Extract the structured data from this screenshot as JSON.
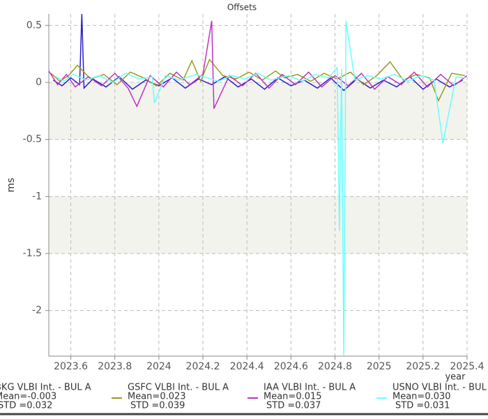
{
  "chart_data": {
    "type": "line",
    "title": "Offsets",
    "y_label": "ms",
    "x_label": "year",
    "xlim": [
      2023.5,
      2025.4
    ],
    "xticks": [
      2023.6,
      2023.8,
      2024,
      2024.2,
      2024.4,
      2024.6,
      2024.8,
      2025,
      2025.2,
      2025.4
    ],
    "ylim": [
      -2.4,
      0.6
    ],
    "yticks": [
      0.5,
      0,
      -0.5,
      -1,
      -1.5,
      -2
    ],
    "grid": true,
    "series": [
      {
        "name": "BKG VLBI Int. - BUL A",
        "color": "#2a1fc8",
        "stats": [
          "Mean=-0.003",
          "STD =0.032"
        ],
        "x": [
          2023.52,
          2023.56,
          2023.6,
          2023.64,
          2023.65,
          2023.66,
          2023.7,
          2023.76,
          2023.82,
          2023.88,
          2023.94,
          2024.0,
          2024.06,
          2024.12,
          2024.18,
          2024.24,
          2024.3,
          2024.36,
          2024.42,
          2024.48,
          2024.54,
          2024.6,
          2024.66,
          2024.72,
          2024.78,
          2024.84,
          2024.9,
          2024.96,
          2025.02,
          2025.08,
          2025.14,
          2025.2,
          2025.26,
          2025.32,
          2025.38
        ],
        "values": [
          0.02,
          -0.03,
          0.04,
          -0.02,
          0.6,
          -0.05,
          0.03,
          -0.04,
          0.05,
          -0.06,
          0.02,
          -0.03,
          0.04,
          -0.05,
          0.03,
          -0.02,
          0.05,
          -0.04,
          0.03,
          -0.06,
          0.04,
          -0.03,
          0.02,
          -0.05,
          0.04,
          -0.07,
          0.03,
          -0.05,
          0.02,
          -0.04,
          0.05,
          -0.06,
          0.03,
          -0.04,
          0.02
        ]
      },
      {
        "name": "GSFC VLBI Int. - BUL A",
        "color": "#9a9a1e",
        "stats": [
          "Mean=0.023",
          "STD =0.039"
        ],
        "x": [
          2023.51,
          2023.55,
          2023.59,
          2023.63,
          2023.69,
          2023.75,
          2023.81,
          2023.87,
          2023.93,
          2023.99,
          2024.05,
          2024.11,
          2024.15,
          2024.19,
          2024.23,
          2024.29,
          2024.35,
          2024.41,
          2024.47,
          2024.53,
          2024.57,
          2024.63,
          2024.69,
          2024.75,
          2024.81,
          2024.87,
          2024.93,
          2024.99,
          2025.05,
          2025.11,
          2025.17,
          2025.23,
          2025.27,
          2025.33,
          2025.39
        ],
        "values": [
          0.08,
          0.01,
          0.06,
          0.15,
          0.03,
          0.07,
          -0.02,
          0.09,
          0.04,
          -0.03,
          0.08,
          0.02,
          0.19,
          0.01,
          0.2,
          0.06,
          0.03,
          0.09,
          0.02,
          0.1,
          0.04,
          0.07,
          0.01,
          0.08,
          0.03,
          0.09,
          -0.02,
          0.06,
          0.18,
          0.02,
          0.07,
          0.04,
          -0.16,
          0.08,
          0.06
        ]
      },
      {
        "name": "IAA VLBI Int. - BUL A",
        "color": "#c032c0",
        "stats": [
          "Mean=0.015",
          "STD =0.037"
        ],
        "x": [
          2023.5,
          2023.54,
          2023.58,
          2023.62,
          2023.68,
          2023.74,
          2023.8,
          2023.86,
          2023.9,
          2023.96,
          2024.02,
          2024.08,
          2024.14,
          2024.2,
          2024.24,
          2024.25,
          2024.32,
          2024.38,
          2024.44,
          2024.5,
          2024.56,
          2024.62,
          2024.68,
          2024.74,
          2024.8,
          2024.86,
          2024.92,
          2024.98,
          2025.04,
          2025.1,
          2025.16,
          2025.22,
          2025.28,
          2025.34,
          2025.4
        ],
        "values": [
          0.1,
          -0.02,
          0.07,
          -0.04,
          0.05,
          -0.03,
          0.08,
          -0.05,
          -0.21,
          0.06,
          -0.04,
          0.09,
          -0.02,
          0.07,
          0.54,
          -0.23,
          0.06,
          -0.03,
          0.08,
          -0.05,
          0.07,
          -0.02,
          0.09,
          -0.04,
          0.06,
          -0.03,
          0.08,
          -0.06,
          0.05,
          -0.02,
          0.09,
          -0.04,
          0.07,
          -0.03,
          0.06
        ]
      },
      {
        "name": "USNO VLBI Int. - BUL A",
        "color": "#66ffff",
        "stats": [
          "Mean=0.030",
          "STD =0.031"
        ],
        "x": [
          2023.53,
          2023.57,
          2023.61,
          2023.67,
          2023.73,
          2023.79,
          2023.85,
          2023.91,
          2023.97,
          2023.98,
          2024.03,
          2024.09,
          2024.17,
          2024.27,
          2024.33,
          2024.39,
          2024.45,
          2024.51,
          2024.59,
          2024.65,
          2024.71,
          2024.77,
          2024.81,
          2024.82,
          2024.83,
          2024.84,
          2024.85,
          2024.89,
          2024.95,
          2025.01,
          2025.07,
          2025.13,
          2025.19,
          2025.25,
          2025.29,
          2025.35,
          2025.39
        ],
        "values": [
          0.05,
          0.01,
          0.07,
          0.02,
          0.06,
          0.0,
          0.08,
          0.03,
          0.05,
          -0.18,
          0.06,
          0.02,
          0.07,
          0.01,
          0.06,
          0.03,
          0.08,
          0.02,
          0.06,
          0.01,
          0.07,
          0.04,
          0.13,
          -1.3,
          0.12,
          -2.4,
          0.54,
          0.02,
          0.06,
          0.03,
          0.07,
          0.01,
          0.06,
          0.02,
          -0.53,
          0.05,
          0.04
        ]
      }
    ]
  }
}
